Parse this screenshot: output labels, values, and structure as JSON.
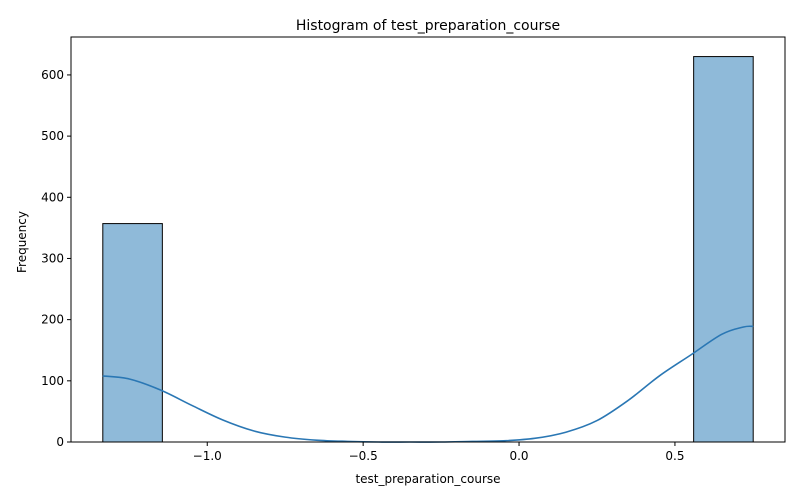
{
  "chart_data": {
    "type": "bar",
    "title": "Histogram of test_preparation_course",
    "xlabel": "test_preparation_course",
    "ylabel": "Frequency",
    "xlim": [
      -1.437,
      0.853
    ],
    "ylim": [
      0,
      662
    ],
    "x_ticks": [
      -1.0,
      -0.5,
      0.0,
      0.5
    ],
    "x_tick_labels": [
      "−1.0",
      "−0.5",
      "0.0",
      "0.5"
    ],
    "y_ticks": [
      0,
      100,
      200,
      300,
      400,
      500,
      600
    ],
    "y_tick_labels": [
      "0",
      "100",
      "200",
      "300",
      "400",
      "500",
      "600"
    ],
    "bins": [
      {
        "x0": -1.335,
        "x1": -1.144,
        "count": 357
      },
      {
        "x0": 0.56,
        "x1": 0.751,
        "count": 630
      }
    ],
    "kde": {
      "x": [
        -1.335,
        -1.25,
        -1.15,
        -1.05,
        -0.95,
        -0.85,
        -0.75,
        -0.65,
        -0.55,
        -0.45,
        -0.35,
        -0.25,
        -0.15,
        -0.05,
        0.05,
        0.15,
        0.25,
        0.35,
        0.45,
        0.55,
        0.65,
        0.72,
        0.751
      ],
      "y": [
        108,
        103,
        85,
        60,
        36,
        18,
        8,
        3,
        1,
        0,
        0,
        0,
        1,
        2,
        6,
        16,
        35,
        68,
        108,
        142,
        176,
        188,
        189
      ]
    },
    "grid": false,
    "legend": "none",
    "colors": {
      "bar_fill": "#8fbad9",
      "bar_edge": "#000000",
      "kde_line": "#2a77b4"
    }
  }
}
